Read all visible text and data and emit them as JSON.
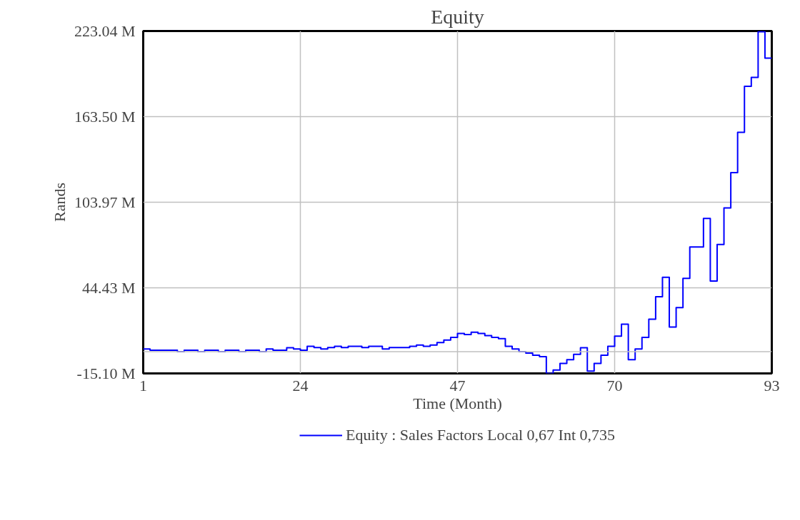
{
  "chart_data": {
    "type": "step",
    "title": "Equity",
    "xlabel": "Time (Month)",
    "ylabel": "Rands",
    "x": [
      1,
      2,
      3,
      4,
      5,
      6,
      7,
      8,
      9,
      10,
      11,
      12,
      13,
      14,
      15,
      16,
      17,
      18,
      19,
      20,
      21,
      22,
      23,
      24,
      25,
      26,
      27,
      28,
      29,
      30,
      31,
      32,
      33,
      34,
      35,
      36,
      37,
      38,
      39,
      40,
      41,
      42,
      43,
      44,
      45,
      46,
      47,
      48,
      49,
      50,
      51,
      52,
      53,
      54,
      55,
      56,
      57,
      58,
      59,
      60,
      61,
      62,
      63,
      64,
      65,
      66,
      67,
      68,
      69,
      70,
      71,
      72,
      73,
      74,
      75,
      76,
      77,
      78,
      79,
      80,
      81,
      82,
      83,
      84,
      85,
      86,
      87,
      88,
      89,
      90,
      91,
      92,
      93
    ],
    "series": [
      {
        "name": "Equity : Sales Factors Local 0,67 Int 0,735",
        "color": "#0000ff",
        "values": [
          1.9,
          1.0,
          1.0,
          1.0,
          1.0,
          0.0,
          1.0,
          1.0,
          0.0,
          1.0,
          1.0,
          0.0,
          1.0,
          1.0,
          0.0,
          1.0,
          1.0,
          0.0,
          1.9,
          1.0,
          1.0,
          2.7,
          1.9,
          1.0,
          3.7,
          2.9,
          1.9,
          2.9,
          3.7,
          2.9,
          3.7,
          3.7,
          2.9,
          3.7,
          3.7,
          1.9,
          2.9,
          2.9,
          2.9,
          3.7,
          4.6,
          3.7,
          4.6,
          6.4,
          8.1,
          10.0,
          12.7,
          11.9,
          13.5,
          12.7,
          11.2,
          10.0,
          9.1,
          3.7,
          1.9,
          0.0,
          -1.0,
          -2.5,
          -3.5,
          -15.1,
          -12.7,
          -8.1,
          -5.6,
          -1.8,
          2.7,
          -13.5,
          -8.1,
          -2.5,
          3.7,
          10.8,
          19.1,
          -5.6,
          1.9,
          10.0,
          22.6,
          38.2,
          51.8,
          17.2,
          30.7,
          51.0,
          72.8,
          72.8,
          92.7,
          49.1,
          74.6,
          100.0,
          124.6,
          152.6,
          184.6,
          190.8,
          222.5,
          204.2,
          204.2
        ]
      }
    ],
    "xlim": [
      1,
      93
    ],
    "xticks": [
      1,
      24,
      47,
      70,
      93
    ],
    "ylim": [
      -15.1,
      223.04
    ],
    "yticks": [
      {
        "value": -15.1,
        "label": "-15.10 M"
      },
      {
        "value": 44.43,
        "label": "44.43 M"
      },
      {
        "value": 103.97,
        "label": "103.97 M"
      },
      {
        "value": 163.5,
        "label": "163.50 M"
      },
      {
        "value": 223.04,
        "label": "223.04 M"
      }
    ],
    "ref_lines": [
      {
        "axis": "y",
        "value": 0,
        "color": "#c0c0c0"
      }
    ],
    "grid": true,
    "legend": "bottom"
  }
}
